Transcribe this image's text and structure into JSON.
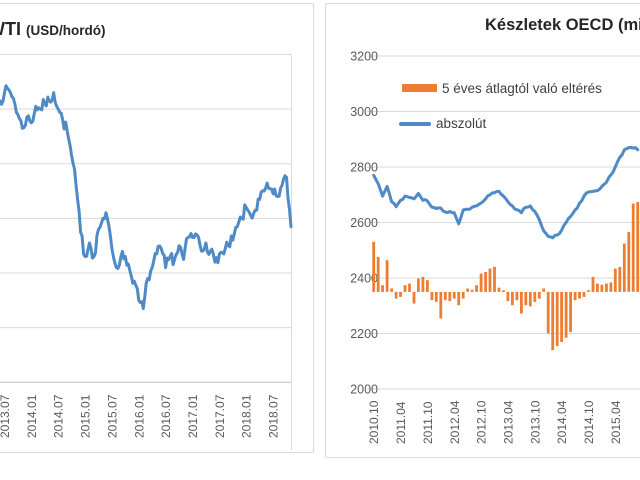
{
  "colors": {
    "line_blue": "#4E8AC6",
    "bar_orange": "#ED7D31",
    "grid": "#D9D9D9",
    "axis": "#BFBFBF",
    "tick_text": "#595959",
    "title_text": "#262626",
    "card_border": "#D9D9D9"
  },
  "charts": {
    "left": {
      "title_main": "WTI",
      "title_sub": "(USD/hordó)"
    },
    "right": {
      "title": "Készletek OECD (millió hordó)",
      "legend": [
        {
          "label": "5 éves átlagtól való eltérés",
          "swatch": "bar-swatch"
        },
        {
          "label": "abszolút",
          "swatch": "line-swatch"
        }
      ]
    }
  },
  "chart_data": [
    {
      "type": "line",
      "title": "WTI (USD/hordó)",
      "x_start": "2013.06",
      "x_interval": "monthly",
      "x_tick_labels": [
        "2013.07",
        "2014.01",
        "2014.07",
        "2015.01",
        "2015.07",
        "2016.01",
        "2016.07",
        "2017.01",
        "2017.07",
        "2018.01",
        "2018.07"
      ],
      "ylim": [
        0,
        120
      ],
      "gridline_step": 20,
      "y_axis_labels_visible": false,
      "series": [
        {
          "name": "WTI",
          "values": [
            103,
            106,
            107,
            104,
            98,
            93,
            97,
            95,
            101,
            100,
            102,
            103,
            106,
            100,
            96,
            92,
            83,
            72,
            55,
            46,
            51,
            46,
            56,
            60,
            60,
            49,
            42,
            46,
            46,
            41,
            37,
            30,
            27,
            38,
            42,
            47,
            49,
            42,
            46,
            45,
            50,
            45,
            53,
            53,
            54,
            48,
            51,
            48,
            44,
            47,
            47,
            50,
            52,
            57,
            60,
            64,
            61,
            63,
            67,
            70,
            71,
            69,
            68,
            72,
            75,
            57
          ]
        }
      ]
    },
    {
      "type": "line+bar",
      "title": "Készletek OECD (millió hordó)",
      "x_start": "2010.10",
      "x_interval": "monthly",
      "x_tick_labels": [
        "2010.10",
        "2011.04",
        "2011.10",
        "2012.04",
        "2012.10",
        "2013.04",
        "2013.10",
        "2014.04",
        "2014.10",
        "2015.04"
      ],
      "ylim": [
        2000,
        3200
      ],
      "y_ticks": [
        3200,
        3000,
        2800,
        2600,
        2400,
        2200,
        2000
      ],
      "legend_position": "top-left-inside",
      "bar_baseline_primary_value": 2350,
      "series": [
        {
          "name": "5 éves átlagtól való eltérés",
          "type": "bar",
          "values_primary_scale": [
            180,
            126,
            24,
            114,
            12,
            -24,
            -18,
            24,
            30,
            -42,
            48,
            54,
            42,
            -30,
            -36,
            -96,
            -30,
            -33,
            -24,
            -48,
            -24,
            12,
            8,
            24,
            66,
            72,
            84,
            90,
            15,
            6,
            -33,
            -48,
            -30,
            -78,
            -48,
            -52,
            -36,
            -24,
            12,
            -150,
            -210,
            -195,
            -180,
            -165,
            -145,
            -30,
            -24,
            -18,
            6,
            54,
            30,
            26,
            30,
            34,
            84,
            90,
            174,
            216,
            318,
            324
          ]
        },
        {
          "name": "abszolút",
          "type": "line",
          "values": [
            2770,
            2740,
            2695,
            2730,
            2675,
            2657,
            2680,
            2695,
            2690,
            2685,
            2705,
            2680,
            2678,
            2655,
            2650,
            2652,
            2638,
            2640,
            2635,
            2595,
            2645,
            2648,
            2655,
            2660,
            2670,
            2685,
            2700,
            2707,
            2712,
            2695,
            2675,
            2660,
            2646,
            2635,
            2655,
            2660,
            2640,
            2610,
            2570,
            2550,
            2545,
            2555,
            2572,
            2600,
            2622,
            2645,
            2670,
            2695,
            2710,
            2712,
            2715,
            2730,
            2745,
            2772,
            2800,
            2835,
            2862,
            2870,
            2868,
            2862
          ]
        }
      ]
    }
  ]
}
